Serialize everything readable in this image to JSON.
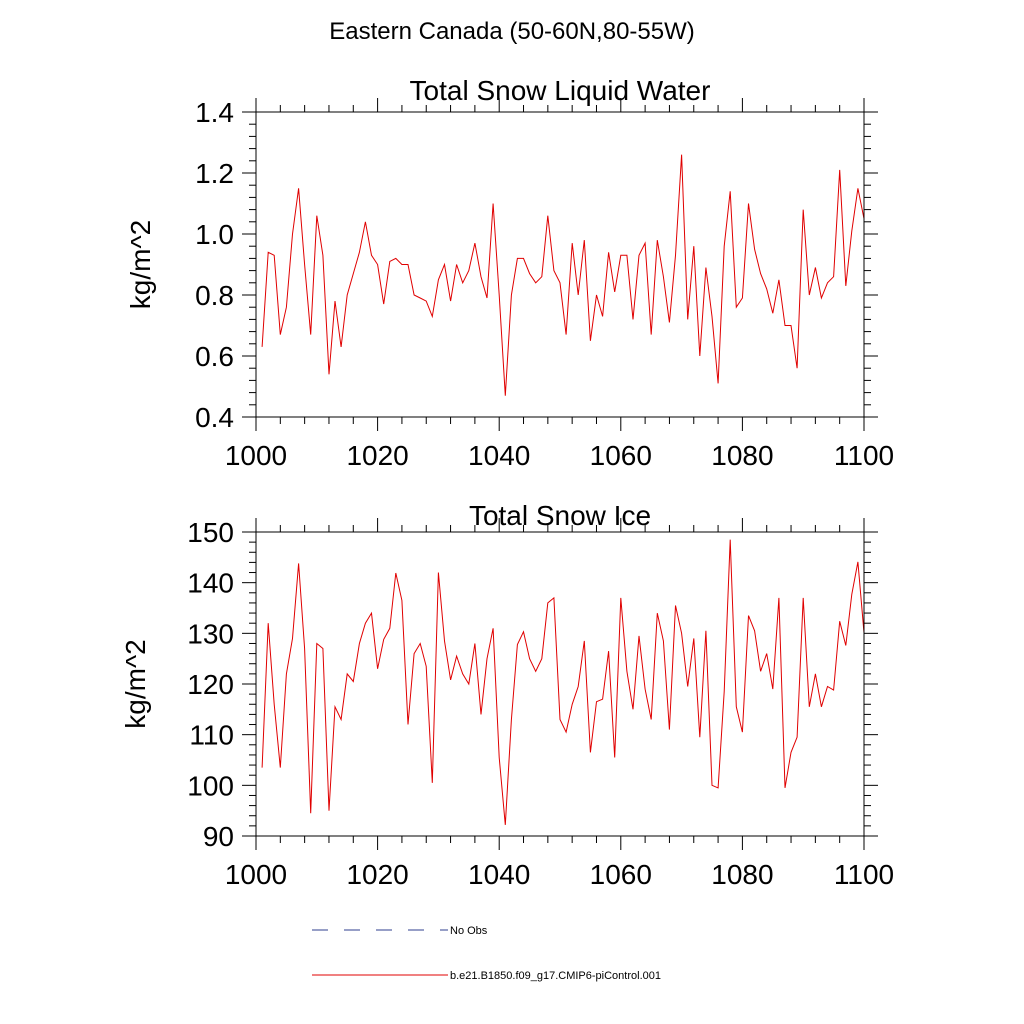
{
  "page_title": "Eastern Canada (50-60N,80-55W)",
  "legend": {
    "items": [
      {
        "label": "No Obs",
        "color": "#2f3f8f",
        "style": "dashed"
      },
      {
        "label": "b.e21.B1850.f09_g17.CMIP6-piControl.001",
        "color": "#e00000",
        "style": "solid"
      }
    ]
  },
  "chart_data": [
    {
      "type": "line",
      "title": "Total Snow Liquid Water",
      "xlabel": "",
      "ylabel": "kg/m^2",
      "xlim": [
        1000,
        1100
      ],
      "ylim": [
        0.4,
        1.4
      ],
      "xticks": [
        1000,
        1020,
        1040,
        1060,
        1080,
        1100
      ],
      "xtick_labels": [
        "1000",
        "1020",
        "1040",
        "1060",
        "1080",
        "1100"
      ],
      "yticks": [
        0.4,
        0.6,
        0.8,
        1.0,
        1.2,
        1.4
      ],
      "ytick_labels": [
        "0.4",
        "0.6",
        "0.8",
        "1.0",
        "1.2",
        "1.4"
      ],
      "series": [
        {
          "name": "b.e21.B1850.f09_g17.CMIP6-piControl.001",
          "color": "#e00000",
          "x_start": 1001,
          "x_step": 1,
          "values": [
            0.63,
            0.94,
            0.93,
            0.67,
            0.76,
            1.0,
            1.15,
            0.9,
            0.67,
            1.06,
            0.93,
            0.54,
            0.78,
            0.63,
            0.8,
            0.87,
            0.94,
            1.04,
            0.93,
            0.9,
            0.77,
            0.91,
            0.92,
            0.9,
            0.9,
            0.8,
            0.79,
            0.78,
            0.73,
            0.85,
            0.9,
            0.78,
            0.9,
            0.84,
            0.88,
            0.97,
            0.86,
            0.79,
            1.1,
            0.8,
            0.47,
            0.8,
            0.92,
            0.92,
            0.87,
            0.84,
            0.86,
            1.06,
            0.88,
            0.84,
            0.67,
            0.97,
            0.8,
            0.98,
            0.65,
            0.8,
            0.73,
            0.94,
            0.81,
            0.93,
            0.93,
            0.72,
            0.93,
            0.97,
            0.67,
            0.98,
            0.86,
            0.71,
            0.93,
            1.26,
            0.72,
            0.96,
            0.6,
            0.89,
            0.73,
            0.51,
            0.96,
            1.14,
            0.76,
            0.79,
            1.1,
            0.95,
            0.87,
            0.82,
            0.74,
            0.85,
            0.7,
            0.7,
            0.56,
            1.08,
            0.8,
            0.89,
            0.79,
            0.84,
            0.86,
            1.21,
            0.83,
            1.01,
            1.15,
            1.05
          ]
        }
      ]
    },
    {
      "type": "line",
      "title": "Total Snow Ice",
      "xlabel": "",
      "ylabel": "kg/m^2",
      "xlim": [
        1000,
        1100
      ],
      "ylim": [
        90,
        150
      ],
      "xticks": [
        1000,
        1020,
        1040,
        1060,
        1080,
        1100
      ],
      "xtick_labels": [
        "1000",
        "1020",
        "1040",
        "1060",
        "1080",
        "1100"
      ],
      "yticks": [
        90,
        100,
        110,
        120,
        130,
        140,
        150
      ],
      "ytick_labels": [
        "90",
        "100",
        "110",
        "120",
        "130",
        "140",
        "150"
      ],
      "series": [
        {
          "name": "b.e21.B1850.f09_g17.CMIP6-piControl.001",
          "color": "#e00000",
          "x_start": 1001,
          "x_step": 1,
          "values": [
            103.5,
            132,
            116,
            103.5,
            122,
            129,
            143.8,
            127,
            94.5,
            128,
            127,
            95,
            115.5,
            113,
            122,
            120.5,
            128,
            132,
            134,
            123,
            128.8,
            131,
            141.9,
            136.5,
            112,
            126,
            128,
            123.5,
            100.5,
            142,
            128.5,
            120.8,
            125.5,
            122,
            120,
            128,
            114,
            125,
            131,
            105.5,
            92.2,
            113,
            127.8,
            130.3,
            125,
            122.5,
            125,
            136,
            137,
            113,
            110.5,
            116,
            119.5,
            128.5,
            106.5,
            116.5,
            117,
            126.5,
            105.5,
            137,
            122.5,
            115,
            129.5,
            119,
            113,
            134,
            128.5,
            111,
            135.5,
            130,
            119.5,
            129,
            109.5,
            130.5,
            100,
            99.5,
            118.5,
            148.5,
            115.5,
            110.5,
            133.5,
            130.5,
            122.5,
            126,
            119,
            137,
            99.5,
            106.5,
            109.5,
            137,
            115.5,
            122,
            115.5,
            119.5,
            118.8,
            132.4,
            127.6,
            137.7,
            144.1,
            130.1
          ]
        }
      ]
    }
  ]
}
